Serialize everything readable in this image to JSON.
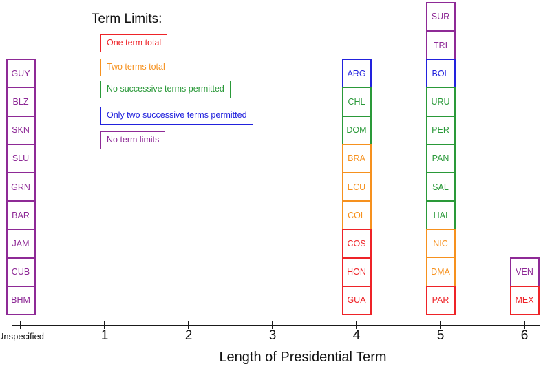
{
  "chart_data": {
    "type": "bar",
    "title": "",
    "xlabel": "Length of Presidential Term",
    "x_ticks": [
      "Unspecified",
      "1",
      "2",
      "3",
      "4",
      "5",
      "6"
    ],
    "legend_position": "upper-left",
    "grid": false,
    "legend": {
      "title": "Term Limits:",
      "entries": [
        {
          "label": "One term total",
          "category": "one_term_total"
        },
        {
          "label": "Two terms total",
          "category": "two_terms_total"
        },
        {
          "label": "No successive terms permitted",
          "category": "no_successive_terms"
        },
        {
          "label": "Only two successive terms permitted",
          "category": "two_successive_terms"
        },
        {
          "label": "No term limits",
          "category": "no_term_limits"
        }
      ]
    },
    "colors": {
      "one_term_total": "#ee2328",
      "two_terms_total": "#f6911e",
      "no_successive_terms": "#2a9939",
      "two_successive_terms": "#2222dd",
      "no_term_limits": "#8e2a96"
    },
    "box_order": "top-to-bottom",
    "columns": [
      {
        "x": "Unspecified",
        "countries": [
          {
            "code": "GUY",
            "category": "no_term_limits"
          },
          {
            "code": "BLZ",
            "category": "no_term_limits"
          },
          {
            "code": "SKN",
            "category": "no_term_limits"
          },
          {
            "code": "SLU",
            "category": "no_term_limits"
          },
          {
            "code": "GRN",
            "category": "no_term_limits"
          },
          {
            "code": "BAR",
            "category": "no_term_limits"
          },
          {
            "code": "JAM",
            "category": "no_term_limits"
          },
          {
            "code": "CUB",
            "category": "no_term_limits"
          },
          {
            "code": "BHM",
            "category": "no_term_limits"
          }
        ]
      },
      {
        "x": "1",
        "countries": []
      },
      {
        "x": "2",
        "countries": []
      },
      {
        "x": "3",
        "countries": []
      },
      {
        "x": "4",
        "countries": [
          {
            "code": "ARG",
            "category": "two_successive_terms"
          },
          {
            "code": "CHL",
            "category": "no_successive_terms"
          },
          {
            "code": "DOM",
            "category": "no_successive_terms"
          },
          {
            "code": "BRA",
            "category": "two_terms_total"
          },
          {
            "code": "ECU",
            "category": "two_terms_total"
          },
          {
            "code": "COL",
            "category": "two_terms_total"
          },
          {
            "code": "COS",
            "category": "one_term_total"
          },
          {
            "code": "HON",
            "category": "one_term_total"
          },
          {
            "code": "GUA",
            "category": "one_term_total"
          }
        ]
      },
      {
        "x": "5",
        "countries": [
          {
            "code": "SUR",
            "category": "no_term_limits"
          },
          {
            "code": "TRI",
            "category": "no_term_limits"
          },
          {
            "code": "BOL",
            "category": "two_successive_terms"
          },
          {
            "code": "URU",
            "category": "no_successive_terms"
          },
          {
            "code": "PER",
            "category": "no_successive_terms"
          },
          {
            "code": "PAN",
            "category": "no_successive_terms"
          },
          {
            "code": "SAL",
            "category": "no_successive_terms"
          },
          {
            "code": "HAI",
            "category": "no_successive_terms"
          },
          {
            "code": "NIC",
            "category": "two_terms_total"
          },
          {
            "code": "DMA",
            "category": "two_terms_total"
          },
          {
            "code": "PAR",
            "category": "one_term_total"
          }
        ]
      },
      {
        "x": "6",
        "countries": [
          {
            "code": "VEN",
            "category": "no_term_limits"
          },
          {
            "code": "MEX",
            "category": "one_term_total"
          }
        ]
      }
    ]
  }
}
